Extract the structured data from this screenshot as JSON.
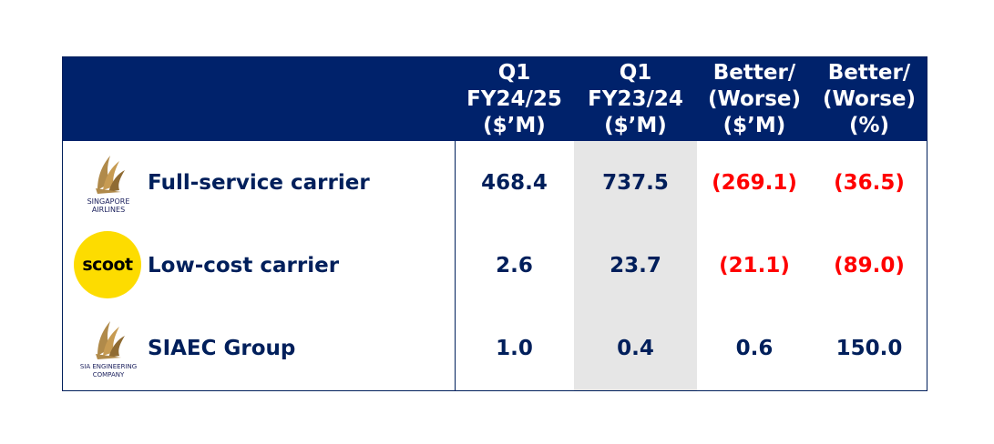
{
  "header": {
    "col_q1_fy2425": "Q1\nFY24/25\n($’M)",
    "col_q1_fy2324": "Q1\nFY23/24\n($’M)",
    "col_better_worse_m": "Better/\n(Worse)\n($’M)",
    "col_better_worse_pct": "Better/\n(Worse)\n(%)"
  },
  "rows": [
    {
      "logo_text": "SINGAPORE\nAIRLINES",
      "logo_icon": "singapore-airlines-bird-logo",
      "label": "Full-service carrier",
      "q1_fy2425": "468.4",
      "q1_fy2324": "737.5",
      "better_worse_m": "(269.1)",
      "better_worse_pct": "(36.5)"
    },
    {
      "logo_text": "scoot",
      "logo_icon": "scoot-logo",
      "label": "Low-cost carrier",
      "q1_fy2425": "2.6",
      "q1_fy2324": "23.7",
      "better_worse_m": "(21.1)",
      "better_worse_pct": "(89.0)"
    },
    {
      "logo_text": "SIA ENGINEERING\nCOMPANY",
      "logo_icon": "sia-engineering-bird-logo",
      "label": "SIAEC Group",
      "q1_fy2425": "1.0",
      "q1_fy2324": "0.4",
      "better_worse_m": "0.6",
      "better_worse_pct": "150.0"
    }
  ],
  "colors": {
    "header_bg": "#00226b",
    "text_navy": "#001f5b",
    "negative_red": "#ff0000",
    "shaded_column": "#e6e6e6",
    "scoot_yellow": "#fddc00",
    "bird_gold": "#b08a4a"
  }
}
